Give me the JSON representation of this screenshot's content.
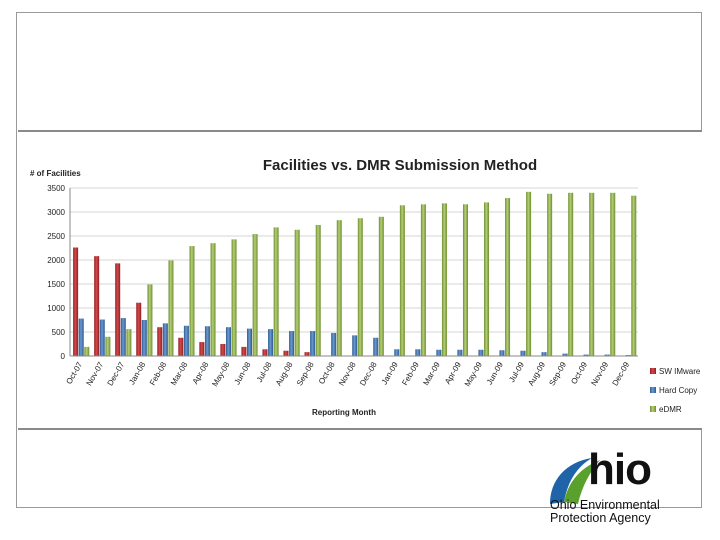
{
  "logo": {
    "word": "hio",
    "line1": "Ohio Environmental",
    "line2": "Protection Agency",
    "colors": {
      "green": "#5aa02c",
      "blue": "#1f63a8",
      "dark": "#111111"
    }
  },
  "chart_data": {
    "type": "bar",
    "title": "Facilities vs. DMR Submission Method",
    "ylabel": "# of Facilities",
    "xlabel": "Reporting Month",
    "ylim": [
      0,
      3500
    ],
    "yticks": [
      0,
      500,
      1000,
      1500,
      2000,
      2500,
      3000,
      3500
    ],
    "grid": true,
    "legend_position": "right",
    "categories": [
      "Oct-07",
      "Nov-07",
      "Dec-07",
      "Jan-08",
      "Feb-08",
      "Mar-08",
      "Apr-08",
      "May-08",
      "Jun-08",
      "Jul-08",
      "Aug-08",
      "Sep-08",
      "Oct-08",
      "Nov-08",
      "Dec-08",
      "Jan-09",
      "Feb-09",
      "Mar-09",
      "Apr-09",
      "May-09",
      "Jun-09",
      "Jul-09",
      "Aug-09",
      "Sep-09",
      "Oct-09",
      "Nov-09",
      "Dec-09"
    ],
    "series": [
      {
        "name": "SW IMware",
        "color": "#c0393b",
        "values": [
          2260,
          2080,
          1930,
          1110,
          600,
          380,
          290,
          250,
          190,
          140,
          110,
          80,
          0,
          0,
          0,
          0,
          0,
          0,
          0,
          0,
          0,
          0,
          0,
          0,
          0,
          0,
          0
        ]
      },
      {
        "name": "Hard Copy",
        "color": "#4f81bd",
        "values": [
          780,
          760,
          790,
          750,
          680,
          630,
          620,
          600,
          570,
          560,
          520,
          520,
          480,
          430,
          380,
          140,
          140,
          130,
          130,
          130,
          120,
          110,
          80,
          50,
          30,
          30,
          20
        ]
      },
      {
        "name": "eDMR",
        "color": "#9bbb59",
        "values": [
          190,
          400,
          560,
          1490,
          1990,
          2290,
          2350,
          2430,
          2540,
          2680,
          2630,
          2730,
          2830,
          2870,
          2900,
          3140,
          3160,
          3180,
          3160,
          3200,
          3290,
          3420,
          3380,
          3400,
          3400,
          3400,
          3340
        ]
      }
    ]
  }
}
